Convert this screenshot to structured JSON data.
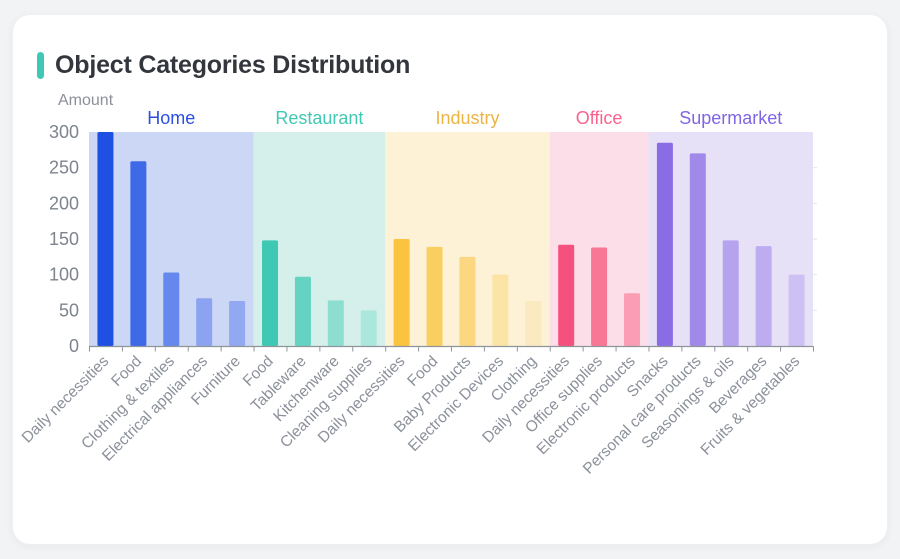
{
  "page": {
    "background": "#f2f3f5",
    "card_background": "#ffffff"
  },
  "header": {
    "title": "Object Categories Distribution",
    "accent_color": "#3fc8b6"
  },
  "chart_data": {
    "type": "bar",
    "title": "Object Categories Distribution",
    "ylabel": "Amount",
    "xlabel": "",
    "ylim": [
      0,
      300
    ],
    "yticks": [
      0,
      50,
      100,
      150,
      200,
      250,
      300
    ],
    "grid": false,
    "legend_position": "group-labels-above-bands",
    "axis_color": "#8f949b",
    "y_tick_label_color": "#7e848d",
    "x_tick_label_color": "#8b909a",
    "groups": [
      {
        "name": "Home",
        "label_color": "#2c4fe2",
        "band_color": "#ccd7f5",
        "bars": [
          {
            "label": "Daily necessities",
            "value": 300,
            "color": "#1d50e3"
          },
          {
            "label": "Food",
            "value": 259,
            "color": "#3e69e7"
          },
          {
            "label": "Clothing & textiles",
            "value": 103,
            "color": "#6687ec"
          },
          {
            "label": "Electrical appliances",
            "value": 67,
            "color": "#8ba3f0"
          },
          {
            "label": "Furniture",
            "value": 63,
            "color": "#92a8f1"
          }
        ]
      },
      {
        "name": "Restaurant",
        "label_color": "#43c8b3",
        "band_color": "#d5f0ea",
        "bars": [
          {
            "label": "Food",
            "value": 148,
            "color": "#3fc8b4"
          },
          {
            "label": "Tableware",
            "value": 97,
            "color": "#65d3c2"
          },
          {
            "label": "Kitchenware",
            "value": 64,
            "color": "#8eded0"
          },
          {
            "label": "Cleaning supplies",
            "value": 50,
            "color": "#abe7dc"
          }
        ]
      },
      {
        "name": "Industry",
        "label_color": "#ecb544",
        "band_color": "#fdf1d6",
        "bars": [
          {
            "label": "Daily necessities",
            "value": 150,
            "color": "#fbc440"
          },
          {
            "label": "Food",
            "value": 139,
            "color": "#fbce62"
          },
          {
            "label": "Baby Products",
            "value": 125,
            "color": "#fbd781"
          },
          {
            "label": "Electronic Devices",
            "value": 100,
            "color": "#fce3a6"
          },
          {
            "label": "Clothing",
            "value": 63,
            "color": "#fbe9c0"
          }
        ]
      },
      {
        "name": "Office",
        "label_color": "#f9628f",
        "band_color": "#fcdee8",
        "bars": [
          {
            "label": "Daily necessities",
            "value": 142,
            "color": "#f5517e"
          },
          {
            "label": "Office supplies",
            "value": 138,
            "color": "#f87795"
          },
          {
            "label": "Electronic products",
            "value": 74,
            "color": "#fa9db5"
          }
        ]
      },
      {
        "name": "Supermarket",
        "label_color": "#8165e3",
        "band_color": "#e7e1f8",
        "bars": [
          {
            "label": "Snacks",
            "value": 285,
            "color": "#8a6ce5"
          },
          {
            "label": "Personal care products",
            "value": 270,
            "color": "#a189e9"
          },
          {
            "label": "Seasonings & oils",
            "value": 148,
            "color": "#b5a3ee"
          },
          {
            "label": "Beverages",
            "value": 140,
            "color": "#bdacf0"
          },
          {
            "label": "Fruits & vegetables",
            "value": 100,
            "color": "#cdc0f3"
          }
        ]
      }
    ]
  }
}
